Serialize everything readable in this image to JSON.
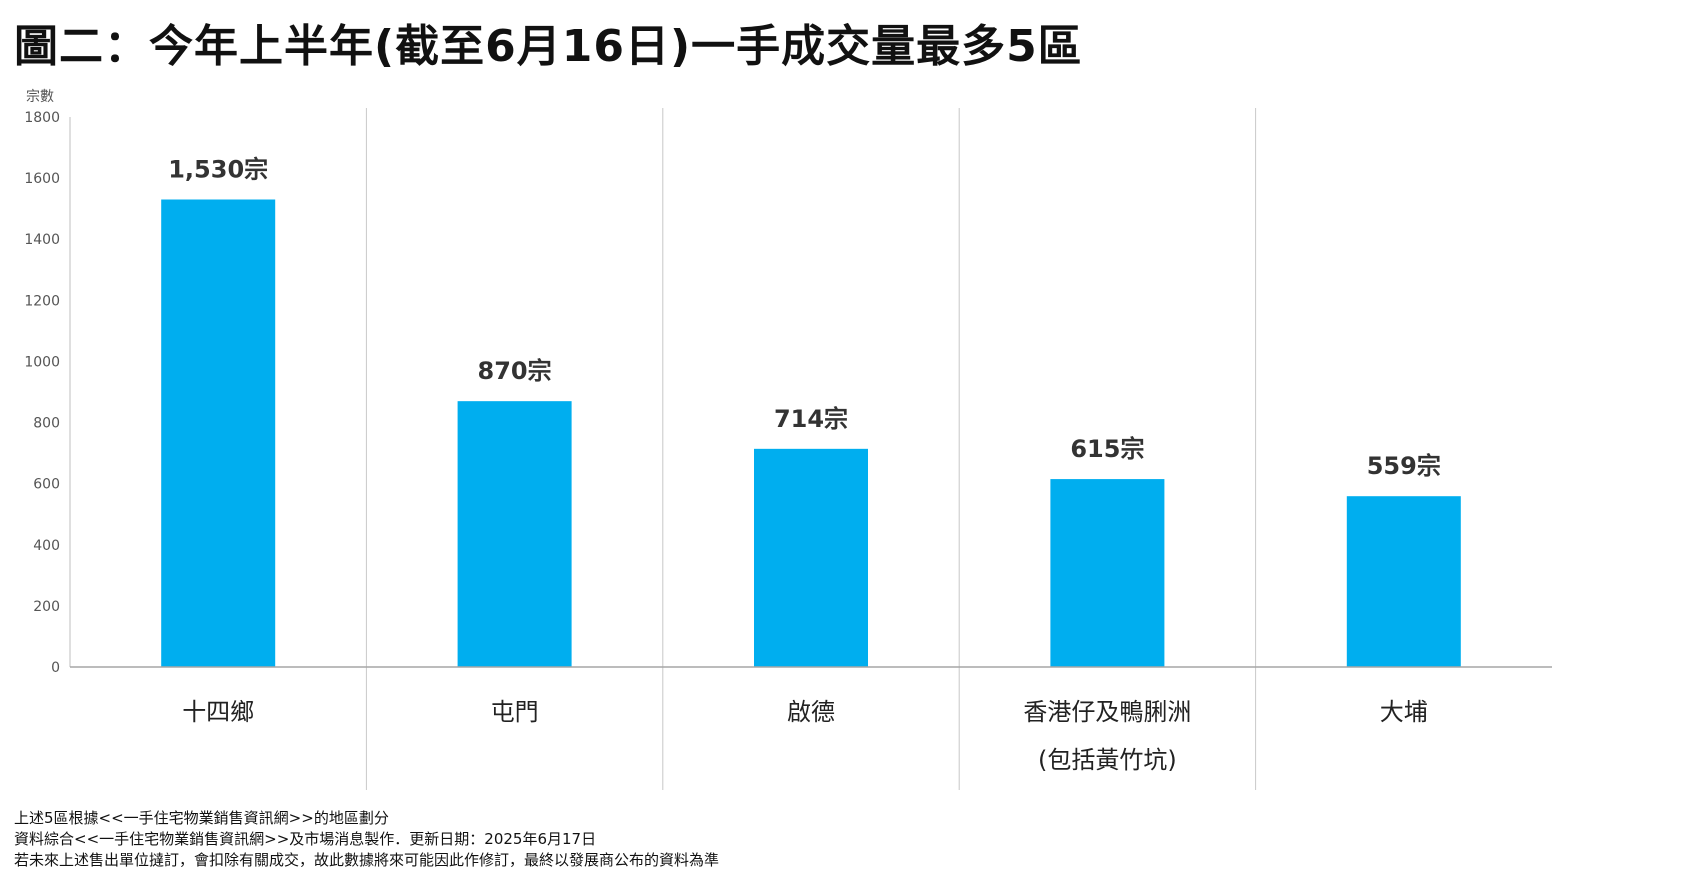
{
  "chart_data": {
    "type": "bar",
    "title": "圖二：今年上半年(截至6月16日)一手成交量最多5區",
    "ylabel": "宗數",
    "ylim": [
      0,
      1800
    ],
    "yticks": [
      "0",
      "200",
      "400",
      "600",
      "800",
      "1000",
      "1200",
      "1400",
      "1600",
      "1800"
    ],
    "categories": [
      [
        "十四鄉"
      ],
      [
        "屯門"
      ],
      [
        "啟德"
      ],
      [
        "香港仔及鴨脷洲",
        "(包括黃竹坑)"
      ],
      [
        "大埔"
      ]
    ],
    "values": [
      1530,
      870,
      714,
      615,
      559
    ],
    "data_labels": [
      "1,530宗",
      "870宗",
      "714宗",
      "615宗",
      "559宗"
    ],
    "bar_color": "#00AEEF",
    "grid": "vertical separators",
    "legend": "none"
  },
  "footnotes": [
    "上述5區根據<<一手住宅物業銷售資訊網>>的地區劃分",
    "資料綜合<<一手住宅物業銷售資訊網>>及市場消息製作．更新日期：2025年6月17日",
    "若未來上述售出單位撻訂，會扣除有關成交，故此數據將來可能因此作修訂，最終以發展商公布的資料為準"
  ]
}
